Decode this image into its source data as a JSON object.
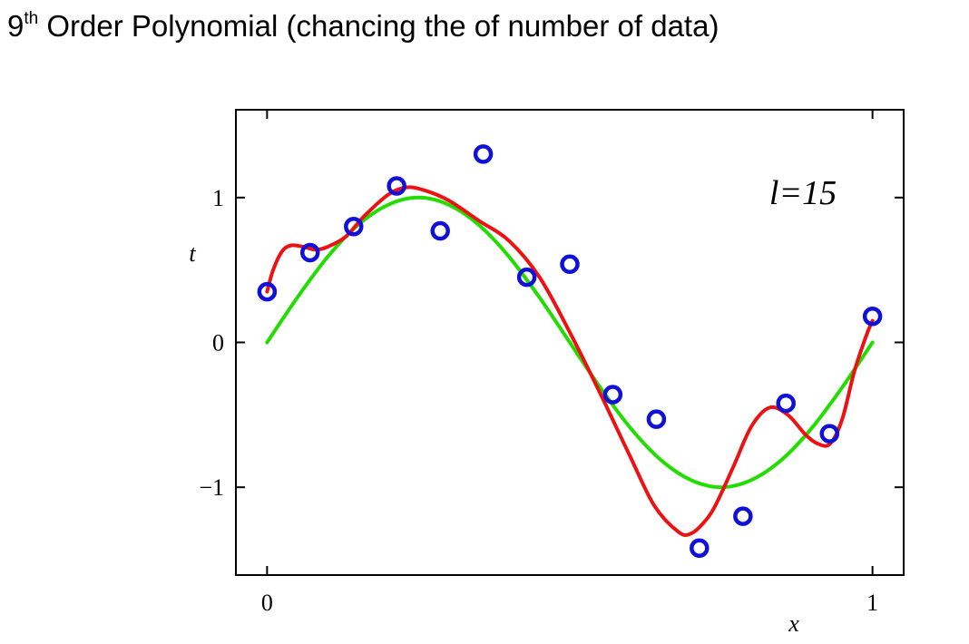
{
  "title": {
    "prefix": "9",
    "superscript": "th",
    "rest": " Order Polynomial (chancing the  of number of data)"
  },
  "chart_data": {
    "type": "scatter",
    "xlim": [
      -0.05,
      1.05
    ],
    "ylim": [
      -1.6,
      1.6
    ],
    "x_ticks": [
      0,
      1
    ],
    "x_tick_labels": [
      "0",
      "1"
    ],
    "y_ticks": [
      -1,
      0,
      1
    ],
    "y_tick_labels": [
      "−1",
      "0",
      "1"
    ],
    "xlabel": "x",
    "ylabel": "t",
    "annotation": "l=15",
    "grid": false,
    "points": {
      "color": "#1010d8",
      "x": [
        0.0,
        0.071,
        0.143,
        0.214,
        0.286,
        0.357,
        0.429,
        0.5,
        0.571,
        0.643,
        0.714,
        0.786,
        0.857,
        0.929,
        1.0
      ],
      "y": [
        0.35,
        0.62,
        0.8,
        1.08,
        0.77,
        1.3,
        0.45,
        0.54,
        -0.36,
        -0.53,
        -1.42,
        -1.2,
        -0.42,
        -0.63,
        0.18
      ]
    },
    "curves": [
      {
        "color": "#22dd00",
        "x": [
          0.0,
          0.05,
          0.1,
          0.15,
          0.2,
          0.25,
          0.3,
          0.35,
          0.4,
          0.45,
          0.5,
          0.55,
          0.6,
          0.65,
          0.7,
          0.75,
          0.8,
          0.85,
          0.9,
          0.95,
          1.0
        ],
        "y": [
          0.0,
          0.31,
          0.59,
          0.81,
          0.95,
          1.0,
          0.95,
          0.81,
          0.59,
          0.31,
          0.0,
          -0.31,
          -0.59,
          -0.81,
          -0.95,
          -1.0,
          -0.95,
          -0.81,
          -0.59,
          -0.31,
          0.0
        ]
      },
      {
        "color": "#ee1111",
        "x": [
          0.0,
          0.01,
          0.025,
          0.04,
          0.06,
          0.08,
          0.1,
          0.13,
          0.16,
          0.2,
          0.23,
          0.26,
          0.3,
          0.35,
          0.4,
          0.45,
          0.5,
          0.55,
          0.6,
          0.64,
          0.68,
          0.7,
          0.72,
          0.74,
          0.77,
          0.8,
          0.83,
          0.86,
          0.89,
          0.91,
          0.93,
          0.95,
          0.97,
          0.99,
          1.0
        ],
        "y": [
          0.35,
          0.5,
          0.63,
          0.67,
          0.66,
          0.64,
          0.66,
          0.73,
          0.87,
          1.02,
          1.07,
          1.05,
          0.98,
          0.84,
          0.7,
          0.45,
          0.07,
          -0.35,
          -0.79,
          -1.13,
          -1.31,
          -1.32,
          -1.25,
          -1.13,
          -0.86,
          -0.58,
          -0.45,
          -0.5,
          -0.64,
          -0.7,
          -0.7,
          -0.53,
          -0.2,
          0.05,
          0.15
        ]
      }
    ]
  }
}
